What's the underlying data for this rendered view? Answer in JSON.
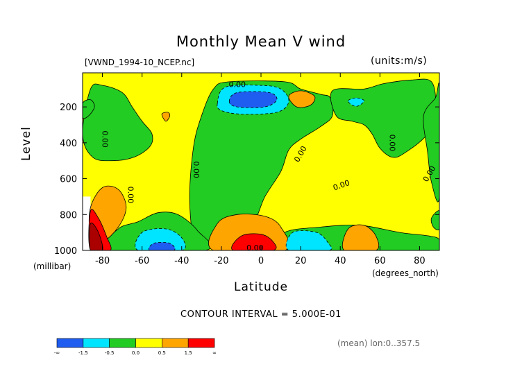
{
  "chart_data": {
    "type": "heatmap",
    "title": "Monthly Mean V wind",
    "file_label": "[VWND_1994-10_NCEP.nc]",
    "units_label": "(units:m/s)",
    "xlabel": "Latitude",
    "x_unit_label": "(degrees_north)",
    "ylabel": "Level",
    "y_unit_label": "(millibar)",
    "x_ticks": [
      "-80",
      "-60",
      "-40",
      "-20",
      "0",
      "20",
      "40",
      "60",
      "80"
    ],
    "y_ticks": [
      "200",
      "400",
      "600",
      "800",
      "1000"
    ],
    "xlim": [
      -90,
      90
    ],
    "ylim": [
      1000,
      10
    ],
    "contour_interval_label": "CONTOUR INTERVAL = 5.000E-01",
    "mean_label": "(mean) lon:0..357.5",
    "contour_labels": [
      "0.00",
      "0.00",
      "0.00",
      "0.00",
      "0.00",
      "0.00",
      "0.00",
      "0.00",
      "0.00",
      "0.00"
    ],
    "colorbar": {
      "labels": [
        "-∞",
        "-1.5",
        "-0.5",
        "0.0",
        "0.5",
        "1.5",
        "∞"
      ],
      "colors": [
        "#1f5cf0",
        "#00e5ff",
        "#22cc22",
        "#ffff00",
        "#ffa500",
        "#ff0000"
      ]
    },
    "regions": [
      {
        "name": "green-south-upper",
        "color": "#22cc22",
        "points": [
          [
            -90,
            350
          ],
          [
            -86,
            100
          ],
          [
            -80,
            80
          ],
          [
            -70,
            120
          ],
          [
            -65,
            200
          ],
          [
            -60,
            280
          ],
          [
            -55,
            350
          ],
          [
            -56,
            420
          ],
          [
            -64,
            480
          ],
          [
            -75,
            500
          ],
          [
            -85,
            480
          ]
        ]
      },
      {
        "name": "green-south-left",
        "color": "#22cc22",
        "points": [
          [
            -90,
            180
          ],
          [
            -86,
            160
          ],
          [
            -84,
            200
          ],
          [
            -87,
            250
          ],
          [
            -90,
            260
          ]
        ]
      },
      {
        "name": "green-central",
        "color": "#22cc22",
        "points": [
          [
            -34,
            950
          ],
          [
            -36,
            700
          ],
          [
            -34,
            420
          ],
          [
            -30,
            250
          ],
          [
            -24,
            100
          ],
          [
            -16,
            60
          ],
          [
            12,
            60
          ],
          [
            20,
            100
          ],
          [
            30,
            130
          ],
          [
            35,
            150
          ],
          [
            36,
            250
          ],
          [
            30,
            310
          ],
          [
            20,
            380
          ],
          [
            14,
            440
          ],
          [
            10,
            560
          ],
          [
            2,
            700
          ],
          [
            -5,
            860
          ],
          [
            -20,
            940
          ],
          [
            -30,
            960
          ]
        ]
      },
      {
        "name": "green-north",
        "color": "#22cc22",
        "points": [
          [
            36,
            110
          ],
          [
            52,
            100
          ],
          [
            62,
            70
          ],
          [
            76,
            50
          ],
          [
            86,
            60
          ],
          [
            88,
            200
          ],
          [
            84,
            350
          ],
          [
            72,
            460
          ],
          [
            66,
            480
          ],
          [
            60,
            430
          ],
          [
            56,
            350
          ],
          [
            52,
            300
          ],
          [
            46,
            280
          ],
          [
            38,
            250
          ]
        ]
      },
      {
        "name": "green-north-right",
        "color": "#22cc22",
        "points": [
          [
            82,
            250
          ],
          [
            88,
            150
          ],
          [
            90,
            100
          ],
          [
            90,
            700
          ],
          [
            86,
            620
          ],
          [
            84,
            450
          ]
        ]
      },
      {
        "name": "green-low-south",
        "color": "#22cc22",
        "points": [
          [
            -78,
            1000
          ],
          [
            -72,
            880
          ],
          [
            -62,
            840
          ],
          [
            -52,
            790
          ],
          [
            -42,
            800
          ],
          [
            -32,
            890
          ],
          [
            -28,
            1000
          ]
        ]
      },
      {
        "name": "green-low-north",
        "color": "#22cc22",
        "points": [
          [
            10,
            1000
          ],
          [
            12,
            900
          ],
          [
            30,
            870
          ],
          [
            50,
            860
          ],
          [
            70,
            900
          ],
          [
            85,
            920
          ],
          [
            90,
            940
          ],
          [
            90,
            1000
          ]
        ]
      },
      {
        "name": "green-right-edge",
        "color": "#22cc22",
        "points": [
          [
            86,
            820
          ],
          [
            90,
            780
          ],
          [
            90,
            880
          ],
          [
            87,
            870
          ]
        ]
      },
      {
        "name": "orange-south",
        "color": "#ffa500",
        "points": [
          [
            -86,
            760
          ],
          [
            -80,
            650
          ],
          [
            -72,
            660
          ],
          [
            -68,
            760
          ],
          [
            -72,
            870
          ],
          [
            -80,
            950
          ],
          [
            -86,
            900
          ]
        ]
      },
      {
        "name": "orange-upper-mid",
        "color": "#ffa500",
        "points": [
          [
            -50,
            240
          ],
          [
            -48,
            280
          ],
          [
            -46,
            250
          ],
          [
            -47,
            230
          ]
        ]
      },
      {
        "name": "orange-upper-north",
        "color": "#ffa500",
        "points": [
          [
            14,
            140
          ],
          [
            20,
            110
          ],
          [
            27,
            140
          ],
          [
            25,
            190
          ],
          [
            18,
            200
          ]
        ]
      },
      {
        "name": "orange-low-equator",
        "color": "#ffa500",
        "points": [
          [
            -24,
            1000
          ],
          [
            -22,
            850
          ],
          [
            -12,
            800
          ],
          [
            2,
            810
          ],
          [
            10,
            870
          ],
          [
            12,
            1000
          ]
        ]
      },
      {
        "name": "orange-low-north",
        "color": "#ffa500",
        "points": [
          [
            42,
            1000
          ],
          [
            44,
            880
          ],
          [
            52,
            860
          ],
          [
            58,
            920
          ],
          [
            58,
            1000
          ]
        ]
      },
      {
        "name": "red-south",
        "color": "#ff0000",
        "points": [
          [
            -86,
            1000
          ],
          [
            -86,
            780
          ],
          [
            -82,
            820
          ],
          [
            -78,
            920
          ],
          [
            -76,
            1000
          ]
        ]
      },
      {
        "name": "red-equator",
        "color": "#ff0000",
        "points": [
          [
            -14,
            1000
          ],
          [
            -10,
            920
          ],
          [
            0,
            910
          ],
          [
            6,
            950
          ],
          [
            6,
            1000
          ]
        ]
      },
      {
        "name": "darkred-south",
        "color": "#aa0000",
        "points": [
          [
            -86,
            1000
          ],
          [
            -86,
            850
          ],
          [
            -82,
            900
          ],
          [
            -80,
            1000
          ]
        ]
      },
      {
        "name": "cyan-upper",
        "color": "#00e5ff",
        "points": [
          [
            -22,
            180
          ],
          [
            -18,
            90
          ],
          [
            0,
            80
          ],
          [
            10,
            100
          ],
          [
            14,
            170
          ],
          [
            8,
            230
          ],
          [
            -10,
            240
          ],
          [
            -20,
            220
          ]
        ]
      },
      {
        "name": "cyan-upper-north",
        "color": "#00e5ff",
        "points": [
          [
            44,
            165
          ],
          [
            48,
            150
          ],
          [
            52,
            165
          ],
          [
            49,
            195
          ],
          [
            46,
            190
          ]
        ]
      },
      {
        "name": "cyan-low-south",
        "color": "#00e5ff",
        "points": [
          [
            -62,
            1000
          ],
          [
            -60,
            900
          ],
          [
            -48,
            880
          ],
          [
            -40,
            930
          ],
          [
            -40,
            1000
          ]
        ]
      },
      {
        "name": "cyan-low-north",
        "color": "#00e5ff",
        "points": [
          [
            14,
            1000
          ],
          [
            16,
            900
          ],
          [
            28,
            900
          ],
          [
            34,
            960
          ],
          [
            34,
            1000
          ]
        ]
      },
      {
        "name": "blue-upper",
        "color": "#1f5cf0",
        "points": [
          [
            -16,
            170
          ],
          [
            -12,
            120
          ],
          [
            4,
            120
          ],
          [
            8,
            160
          ],
          [
            2,
            200
          ],
          [
            -12,
            200
          ]
        ]
      },
      {
        "name": "blue-low-south",
        "color": "#1f5cf0",
        "points": [
          [
            -56,
            1000
          ],
          [
            -54,
            960
          ],
          [
            -46,
            960
          ],
          [
            -44,
            1000
          ]
        ]
      }
    ]
  }
}
